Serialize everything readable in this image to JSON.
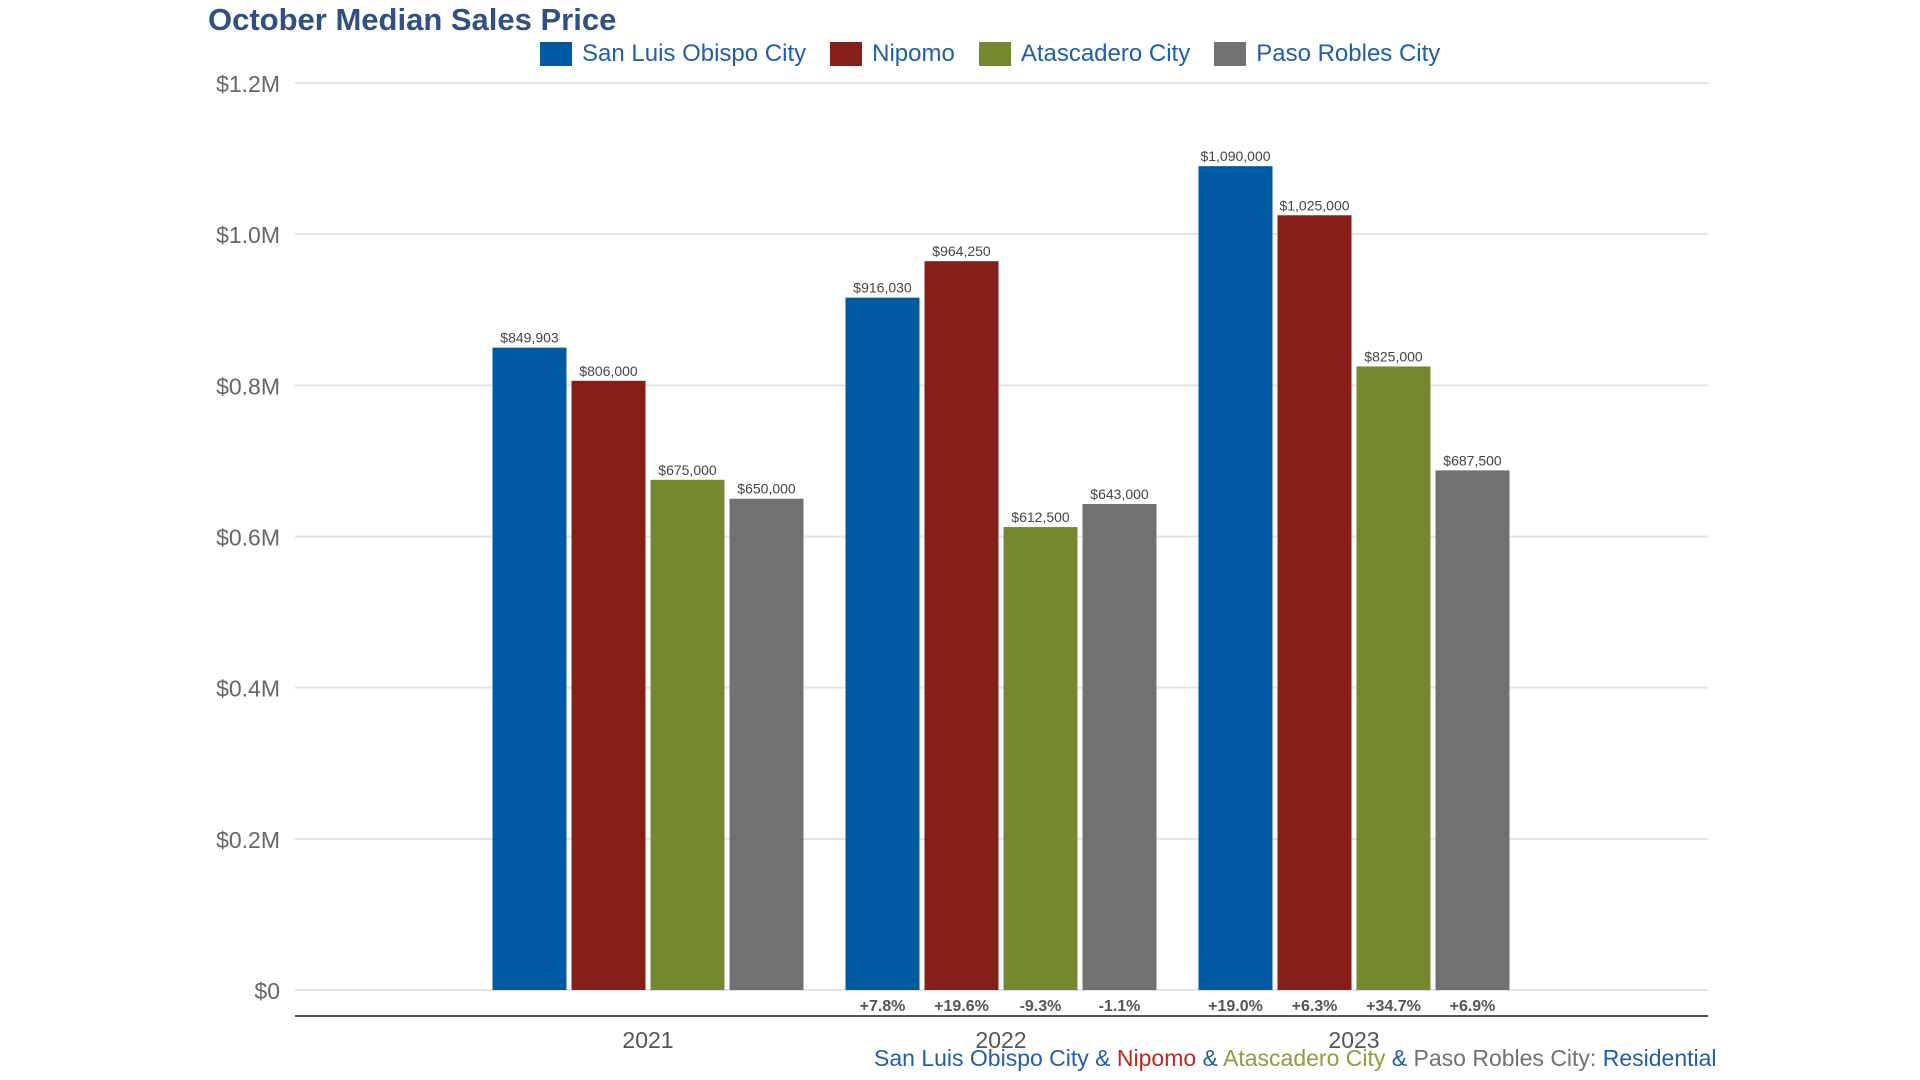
{
  "chart_data": {
    "type": "bar",
    "title": "October Median Sales Price",
    "categories": [
      "2021",
      "2022",
      "2023"
    ],
    "series": [
      {
        "name": "San Luis Obispo City",
        "color": "#005aa3",
        "values": [
          849903,
          916030,
          1090000
        ],
        "labels": [
          "$849,903",
          "$916,030",
          "$1,090,000"
        ],
        "changes": [
          "",
          "+7.8%",
          "+19.0%"
        ]
      },
      {
        "name": "Nipomo",
        "color": "#851f18",
        "values": [
          806000,
          964250,
          1025000
        ],
        "labels": [
          "$806,000",
          "$964,250",
          "$1,025,000"
        ],
        "changes": [
          "",
          "+19.6%",
          "+6.3%"
        ]
      },
      {
        "name": "Atascadero City",
        "color": "#758830",
        "values": [
          675000,
          612500,
          825000
        ],
        "labels": [
          "$675,000",
          "$612,500",
          "$825,000"
        ],
        "changes": [
          "",
          "-9.3%",
          "+34.7%"
        ]
      },
      {
        "name": "Paso Robles City",
        "color": "#717171",
        "values": [
          650000,
          643000,
          687500
        ],
        "labels": [
          "$650,000",
          "$643,000",
          "$687,500"
        ],
        "changes": [
          "",
          "-1.1%",
          "+6.9%"
        ]
      }
    ],
    "ylim": [
      0,
      1200000
    ],
    "yticks": [
      {
        "value": 0,
        "label": "$0"
      },
      {
        "value": 200000,
        "label": "$0.2M"
      },
      {
        "value": 400000,
        "label": "$0.4M"
      },
      {
        "value": 600000,
        "label": "$0.6M"
      },
      {
        "value": 800000,
        "label": "$0.8M"
      },
      {
        "value": 1000000,
        "label": "$1.0M"
      },
      {
        "value": 1200000,
        "label": "$1.2M"
      }
    ],
    "grid": true,
    "legend_position": "top"
  },
  "footer": {
    "parts": [
      {
        "text": "San Luis Obispo City",
        "color": "#1f5fa8"
      },
      {
        "text": " & ",
        "color": "#1f5fa8"
      },
      {
        "text": "Nipomo",
        "color": "#c0281c"
      },
      {
        "text": " & ",
        "color": "#1f5fa8"
      },
      {
        "text": "Atascadero City",
        "color": "#8aa03a"
      },
      {
        "text": " & ",
        "color": "#1f5fa8"
      },
      {
        "text": "Paso Robles City: ",
        "color": "#717171"
      },
      {
        "text": "Residential",
        "color": "#1f5fa8"
      }
    ]
  }
}
